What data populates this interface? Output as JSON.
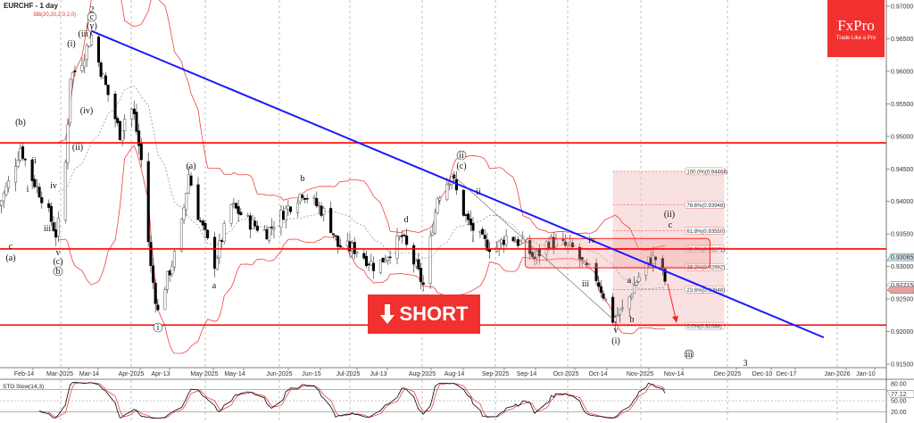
{
  "chart_data": {
    "type": "candlestick",
    "title": "EURCHF - 1 day",
    "indicator_label": "BB(20,20,2.0,2.0)",
    "y_axis": {
      "min": 0.915,
      "max": 0.97,
      "ticks": [
        "0.97000",
        "0.96500",
        "0.96000",
        "0.95500",
        "0.95000",
        "0.94500",
        "0.94000",
        "0.93500",
        "0.93000",
        "0.92500",
        "0.92000",
        "0.91500"
      ]
    },
    "x_ticks": [
      "Feb-14",
      "Mar-2025",
      "Mar-14",
      "Apr-2025",
      "Apr-13",
      "May-2025",
      "May-14",
      "Jun-2025",
      "Jun-15",
      "Jul-2025",
      "Jul-13",
      "Aug-2025",
      "Aug-14",
      "Sep-2025",
      "Sep-14",
      "Oct-2025",
      "Oct-14",
      "Nov-2025",
      "Nov-14",
      "Dec-2025",
      "Dec-10",
      "Dec-17",
      "Jan-2026",
      "Jan-10"
    ],
    "close_path": [
      [
        "2025-02-03",
        0.9394
      ],
      [
        "2025-02-07",
        0.9428
      ],
      [
        "2025-02-12",
        0.9483
      ],
      [
        "2025-02-17",
        0.9435
      ],
      [
        "2025-02-22",
        0.9401
      ],
      [
        "2025-02-27",
        0.935
      ],
      [
        "2025-03-02",
        0.9394
      ],
      [
        "2025-03-04",
        0.9524
      ],
      [
        "2025-03-05",
        0.9593
      ],
      [
        "2025-03-09",
        0.9607
      ],
      [
        "2025-03-11",
        0.9627
      ],
      [
        "2025-03-14",
        0.9655
      ],
      [
        "2025-03-17",
        0.9614
      ],
      [
        "2025-03-22",
        0.9552
      ],
      [
        "2025-03-26",
        0.9504
      ],
      [
        "2025-03-30",
        0.9552
      ],
      [
        "2025-04-01",
        0.9531
      ],
      [
        "2025-04-04",
        0.9463
      ],
      [
        "2025-04-08",
        0.9298
      ],
      [
        "2025-04-11",
        0.923
      ],
      [
        "2025-04-14",
        0.9271
      ],
      [
        "2025-04-20",
        0.9339
      ],
      [
        "2025-04-24",
        0.9442
      ],
      [
        "2025-04-28",
        0.938
      ],
      [
        "2025-05-05",
        0.9305
      ],
      [
        "2025-05-12",
        0.9394
      ],
      [
        "2025-05-20",
        0.9367
      ],
      [
        "2025-05-27",
        0.9353
      ],
      [
        "2025-06-04",
        0.9387
      ],
      [
        "2025-06-11",
        0.9415
      ],
      [
        "2025-06-21",
        0.938
      ],
      [
        "2025-06-26",
        0.9332
      ],
      [
        "2025-07-04",
        0.9326
      ],
      [
        "2025-07-12",
        0.9298
      ],
      [
        "2025-07-23",
        0.9346
      ],
      [
        "2025-07-29",
        0.9298
      ],
      [
        "2025-08-01",
        0.9271
      ],
      [
        "2025-08-04",
        0.9339
      ],
      [
        "2025-08-07",
        0.9407
      ],
      [
        "2025-08-13",
        0.9442
      ],
      [
        "2025-08-16",
        0.9401
      ],
      [
        "2025-08-20",
        0.9367
      ],
      [
        "2025-08-26",
        0.9339
      ],
      [
        "2025-08-31",
        0.9326
      ],
      [
        "2025-09-06",
        0.935
      ],
      [
        "2025-09-14",
        0.9326
      ],
      [
        "2025-09-17",
        0.9312
      ],
      [
        "2025-09-23",
        0.9339
      ],
      [
        "2025-09-29",
        0.9332
      ],
      [
        "2025-10-04",
        0.9326
      ],
      [
        "2025-10-08",
        0.9298
      ],
      [
        "2025-10-12",
        0.9291
      ],
      [
        "2025-10-16",
        0.9257
      ],
      [
        "2025-10-20",
        0.9219
      ],
      [
        "2025-10-25",
        0.9236
      ],
      [
        "2025-10-29",
        0.9271
      ],
      [
        "2025-11-02",
        0.9298
      ],
      [
        "2025-11-05",
        0.9312
      ],
      [
        "2025-11-08",
        0.9312
      ],
      [
        "2025-11-11",
        0.9278
      ]
    ],
    "horizontal_levels": [
      0.949,
      0.9327,
      0.921
    ],
    "trendline": {
      "from": [
        "2025-03-14",
        0.9662
      ],
      "to": [
        "2026-01-17",
        0.9191
      ],
      "color": "#1a1aff"
    },
    "resistance_zone": {
      "from": "2025-09-13",
      "to": "2025-11-30",
      "low": 0.9298,
      "high": 0.9343
    },
    "fibonacci": {
      "from": "2025-10-20",
      "to": "2025-12-06",
      "levels": [
        {
          "label": "100.0%(0.94464)",
          "price": 0.94464
        },
        {
          "label": "78.6%(0.93948)",
          "price": 0.93948
        },
        {
          "label": "61.8%(0.93550)",
          "price": 0.9355
        },
        {
          "label": "50.0%(0.93271)",
          "price": 0.93271
        },
        {
          "label": "38.2%(0.92992)",
          "price": 0.92992
        },
        {
          "label": "23.6%(0.92648)",
          "price": 0.92648
        },
        {
          "label": "0.0%(0.92088)",
          "price": 0.92088
        }
      ]
    },
    "price_tags": [
      {
        "text": "0.93085",
        "price": 0.93085,
        "color": "#cfe3ee"
      },
      {
        "text": "0.92715",
        "price": 0.92715,
        "color": "#ffffff"
      },
      {
        "text": "",
        "price": 0.9264,
        "color": "#e8a0a0"
      }
    ],
    "wave_labels": [
      "2",
      "c",
      "(v)",
      "(iii)",
      "(i)",
      "(iv)",
      "(ii)",
      "(b)",
      "ii",
      "i",
      "iv",
      "iii",
      "c",
      "(a)",
      "v",
      "(c)",
      "b",
      "i",
      "(a)",
      "a",
      "b",
      "d",
      "ii",
      "(c)",
      "ii",
      "i",
      "iv",
      "iii",
      "v",
      "(i)",
      "a",
      "b",
      "(ii)",
      "c",
      "iii",
      "3"
    ],
    "stochastic": {
      "label": "STO Slow(14,3)",
      "current": "77.12",
      "levels": [
        "80.00",
        "50.00",
        "20.00"
      ],
      "colors": {
        "main": "#000000",
        "signal": "#e03030"
      }
    },
    "colors": {
      "bands": "#f04040",
      "levels": "#ff0000",
      "ma": "#888888",
      "up": "#ffffff",
      "down": "#000000"
    }
  },
  "banner": {
    "text": "SHORT",
    "icon": "arrow-down-icon"
  },
  "logo": {
    "name": "FxPro",
    "tagline": "Trade Like a Pro"
  }
}
